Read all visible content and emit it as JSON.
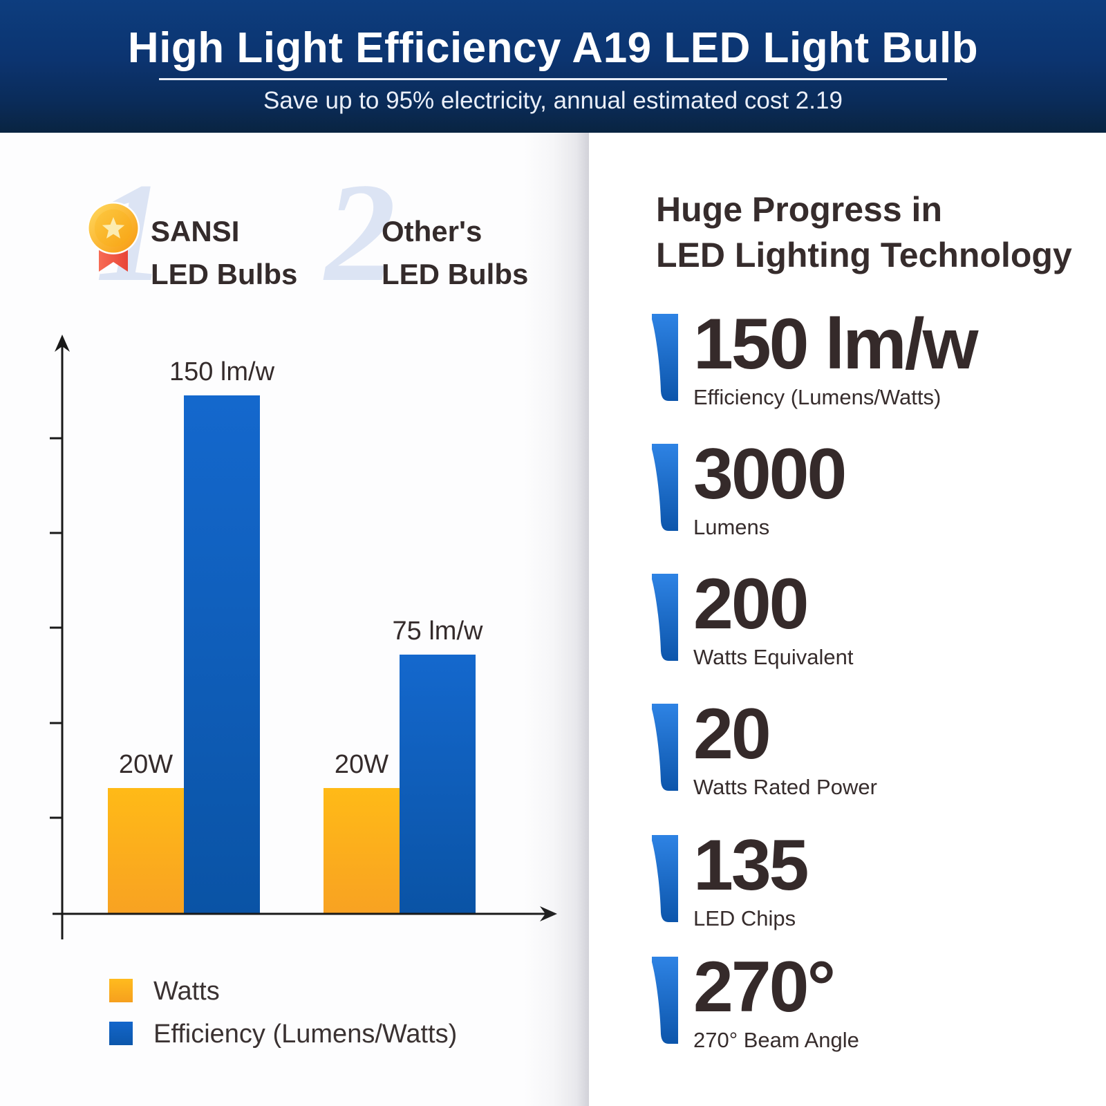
{
  "header": {
    "title": "High Light Efficiency A19 LED Light Bulb",
    "subtitle": "Save up to 95% electricity, annual estimated cost 2.19"
  },
  "comparison": {
    "groups": [
      {
        "rank": "1",
        "name_line1": "SANSI",
        "name_line2": "LED Bulbs",
        "has_medal": true
      },
      {
        "rank": "2",
        "name_line1": "Other's",
        "name_line2": "LED Bulbs",
        "has_medal": false
      }
    ],
    "legend": [
      {
        "label": "Watts",
        "swatch": "orange"
      },
      {
        "label": "Efficiency (Lumens/Watts)",
        "swatch": "blue"
      }
    ]
  },
  "chart_data": {
    "type": "bar",
    "categories": [
      "SANSI LED Bulbs",
      "Other's LED Bulbs"
    ],
    "series": [
      {
        "name": "Watts",
        "values": [
          20,
          20
        ],
        "bar_labels": [
          "20W",
          "20W"
        ],
        "swatch": "orange"
      },
      {
        "name": "Efficiency (Lumens/Watts)",
        "values": [
          150,
          75
        ],
        "bar_labels": [
          "150 lm/w",
          "75 lm/w"
        ],
        "swatch": "blue"
      }
    ],
    "ylim": [
      0,
      170
    ],
    "xlabel": "",
    "ylabel": "",
    "gridlines": false,
    "axis_tick_count": 5,
    "legend_position": "bottom-left"
  },
  "specs": {
    "heading_line1": "Huge Progress in",
    "heading_line2": "LED Lighting Technology",
    "items": [
      {
        "value": "150 lm/w",
        "label": "Efficiency (Lumens/Watts)"
      },
      {
        "value": "3000",
        "label": "Lumens"
      },
      {
        "value": "200",
        "label": "Watts Equivalent"
      },
      {
        "value": "20",
        "label": "Watts Rated Power"
      },
      {
        "value": "135",
        "label": "LED Chips"
      },
      {
        "value": "270°",
        "label": "270° Beam Angle"
      }
    ]
  },
  "colors": {
    "header_top": "#0d3d7e",
    "header_bottom": "#092441",
    "bar_orange_top": "#ffba17",
    "bar_orange_bottom": "#f8a222",
    "bar_blue_top": "#1468cd",
    "bar_blue_bottom": "#0a53a5",
    "marker_blue_top": "#2e83e4",
    "marker_blue_bottom": "#0c55ab",
    "watermark": "#dce4f4",
    "text_dark": "#352a2a",
    "medal_gold": "#f9b21c",
    "medal_ribbon": "#ee5244"
  }
}
